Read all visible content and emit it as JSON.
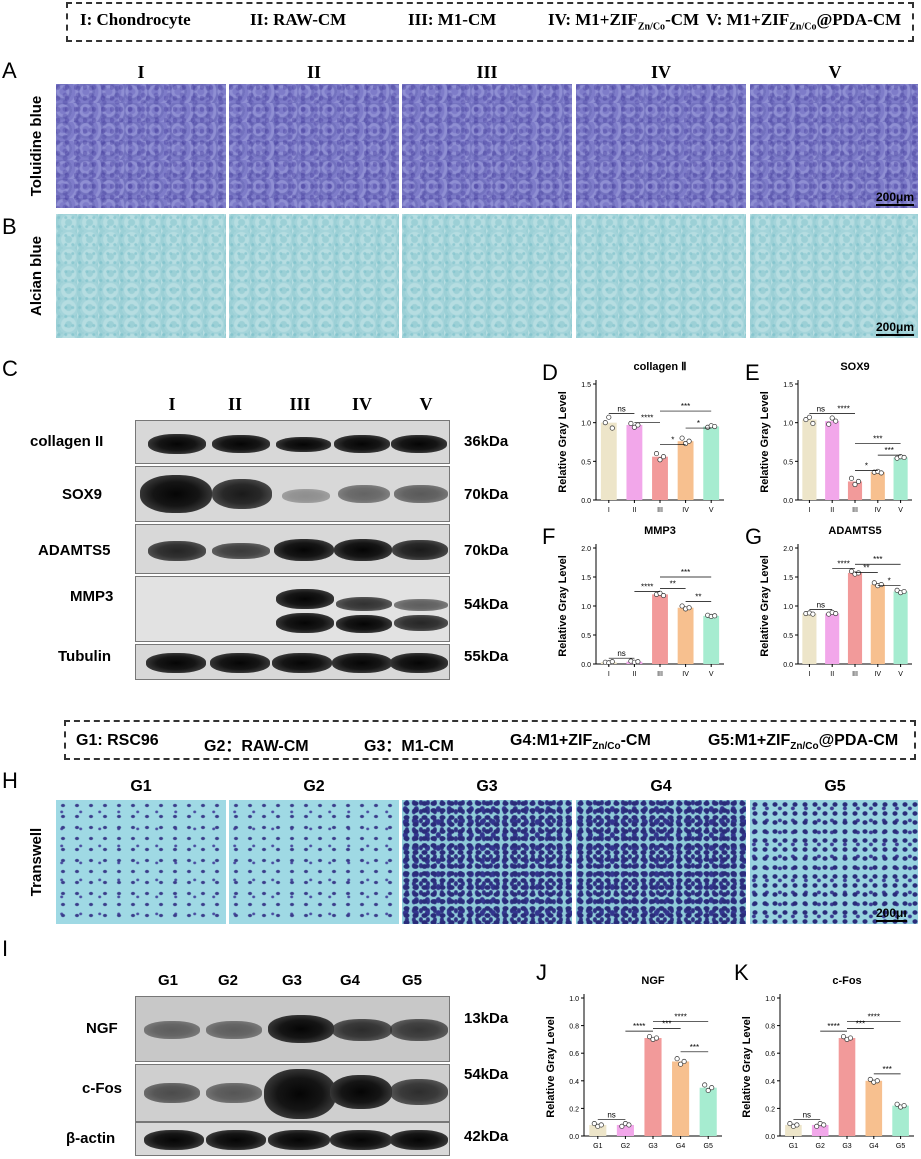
{
  "top_legend": {
    "items": [
      {
        "roman": "I:",
        "text": "Chondrocyte",
        "sub": "",
        "suffix": ""
      },
      {
        "roman": "II:",
        "text": "RAW-CM",
        "sub": "",
        "suffix": ""
      },
      {
        "roman": "III:",
        "text": "M1-CM",
        "sub": "",
        "suffix": ""
      },
      {
        "roman": "IV:",
        "text": "M1+ZIF",
        "sub": "Zn/Co",
        "suffix": "-CM"
      },
      {
        "roman": "V:",
        "text": "M1+ZIF",
        "sub": "Zn/Co",
        "suffix": "@PDA-CM"
      }
    ]
  },
  "panels": {
    "A": "A",
    "B": "B",
    "C": "C",
    "D": "D",
    "E": "E",
    "F": "F",
    "G": "G",
    "H": "H",
    "I": "I",
    "J": "J",
    "K": "K"
  },
  "roman_columns": [
    "I",
    "II",
    "III",
    "IV",
    "V"
  ],
  "row_labels": {
    "toluidine": "Toluidine blue",
    "alcian": "Alcian blue",
    "transwell": "Transwell"
  },
  "scale_bar": "200μm",
  "scale_bar_cut": "200μı",
  "blot_c": {
    "lanes": [
      "I",
      "II",
      "III",
      "IV",
      "V"
    ],
    "rows": [
      {
        "label": "collagen II",
        "kda": "36kDa"
      },
      {
        "label": "SOX9",
        "kda": "70kDa"
      },
      {
        "label": "ADAMTS5",
        "kda": "70kDa"
      },
      {
        "label": "MMP3",
        "kda": "54kDa"
      },
      {
        "label": "Tubulin",
        "kda": "55kDa"
      }
    ]
  },
  "bottom_legend": {
    "items": [
      {
        "g": "G1:",
        "text": "RSC96",
        "sub": "",
        "suffix": ""
      },
      {
        "g": "G2：",
        "text": "RAW-CM",
        "sub": "",
        "suffix": ""
      },
      {
        "g": "G3：",
        "text": "M1-CM",
        "sub": "",
        "suffix": ""
      },
      {
        "g": "G4:",
        "text": "M1+ZIF",
        "sub": "Zn/Co",
        "suffix": "-CM"
      },
      {
        "g": "G5:",
        "text": "M1+ZIF",
        "sub": "Zn/Co",
        "suffix": "@PDA-CM"
      }
    ]
  },
  "g_columns": [
    "G1",
    "G2",
    "G3",
    "G4",
    "G5"
  ],
  "blot_i": {
    "lanes": [
      "G1",
      "G2",
      "G3",
      "G4",
      "G5"
    ],
    "rows": [
      {
        "label": "NGF",
        "kda": "13kDa"
      },
      {
        "label": "c-Fos",
        "kda": "54kDa"
      },
      {
        "label": "β-actin",
        "kda": "42kDa"
      }
    ]
  },
  "colors": {
    "I": "#ede5c9",
    "II": "#f2a7ea",
    "III": "#f29a9a",
    "IV": "#f7c08f",
    "V": "#a6ecd0"
  },
  "chart_data": [
    {
      "id": "D",
      "type": "bar",
      "title": "collagen Ⅱ",
      "ylabel": "Relative Gray Level",
      "categories": [
        "I",
        "II",
        "III",
        "IV",
        "V"
      ],
      "values": [
        1.0,
        0.97,
        0.56,
        0.76,
        0.95
      ],
      "points": [
        [
          1.0,
          1.07,
          0.93
        ],
        [
          0.99,
          0.94,
          0.97
        ],
        [
          0.6,
          0.52,
          0.56
        ],
        [
          0.8,
          0.73,
          0.76
        ],
        [
          0.94,
          0.96,
          0.95
        ]
      ],
      "ylim": [
        0,
        1.5
      ],
      "yticks": [
        "0.0",
        "0.5",
        "1.0",
        "1.5"
      ],
      "sig": [
        {
          "from": 0,
          "to": 1,
          "y": 1.12,
          "label": "ns"
        },
        {
          "from": 1,
          "to": 2,
          "y": 1.0,
          "label": "****"
        },
        {
          "from": 2,
          "to": 4,
          "y": 1.15,
          "label": "***"
        },
        {
          "from": 2,
          "to": 3,
          "y": 0.72,
          "label": "*"
        },
        {
          "from": 3,
          "to": 4,
          "y": 0.93,
          "label": "*"
        }
      ]
    },
    {
      "id": "E",
      "type": "bar",
      "title": "SOX9",
      "ylabel": "Relative Gray Level",
      "categories": [
        "I",
        "II",
        "III",
        "IV",
        "V"
      ],
      "values": [
        1.04,
        1.02,
        0.24,
        0.36,
        0.55
      ],
      "points": [
        [
          1.04,
          1.07,
          0.99
        ],
        [
          0.98,
          1.06,
          1.02
        ],
        [
          0.28,
          0.2,
          0.24
        ],
        [
          0.36,
          0.37,
          0.35
        ],
        [
          0.54,
          0.56,
          0.55
        ]
      ],
      "ylim": [
        0,
        1.5
      ],
      "yticks": [
        "0.0",
        "0.5",
        "1.0",
        "1.5"
      ],
      "sig": [
        {
          "from": 0,
          "to": 1,
          "y": 1.12,
          "label": "ns"
        },
        {
          "from": 1,
          "to": 2,
          "y": 1.12,
          "label": "****"
        },
        {
          "from": 2,
          "to": 4,
          "y": 0.73,
          "label": "***"
        },
        {
          "from": 2,
          "to": 3,
          "y": 0.38,
          "label": "*"
        },
        {
          "from": 3,
          "to": 4,
          "y": 0.58,
          "label": "***"
        }
      ]
    },
    {
      "id": "F",
      "type": "bar",
      "title": "MMP3",
      "ylabel": "Relative Gray Level",
      "categories": [
        "I",
        "II",
        "III",
        "IV",
        "V"
      ],
      "values": [
        0.03,
        0.04,
        1.2,
        0.97,
        0.83
      ],
      "points": [
        [
          0.03,
          0.02,
          0.04
        ],
        [
          0.05,
          0.03,
          0.04
        ],
        [
          1.2,
          1.22,
          1.18
        ],
        [
          1.0,
          0.95,
          0.97
        ],
        [
          0.84,
          0.82,
          0.83
        ]
      ],
      "ylim": [
        0,
        2.0
      ],
      "yticks": [
        "0.0",
        "0.5",
        "1.0",
        "1.5",
        "2.0"
      ],
      "sig": [
        {
          "from": 0,
          "to": 1,
          "y": 0.1,
          "label": "ns"
        },
        {
          "from": 1,
          "to": 2,
          "y": 1.25,
          "label": "****"
        },
        {
          "from": 2,
          "to": 4,
          "y": 1.5,
          "label": "***"
        },
        {
          "from": 2,
          "to": 3,
          "y": 1.3,
          "label": "**"
        },
        {
          "from": 3,
          "to": 4,
          "y": 1.08,
          "label": "**"
        }
      ]
    },
    {
      "id": "G",
      "type": "bar",
      "title": "ADAMTS5",
      "ylabel": "Relative Gray Level",
      "categories": [
        "I",
        "II",
        "III",
        "IV",
        "V"
      ],
      "values": [
        0.87,
        0.87,
        1.57,
        1.37,
        1.25
      ],
      "points": [
        [
          0.87,
          0.88,
          0.86
        ],
        [
          0.86,
          0.89,
          0.87
        ],
        [
          1.6,
          1.55,
          1.57
        ],
        [
          1.4,
          1.35,
          1.37
        ],
        [
          1.27,
          1.23,
          1.25
        ]
      ],
      "ylim": [
        0,
        2.0
      ],
      "yticks": [
        "0.0",
        "0.5",
        "1.0",
        "1.5",
        "2.0"
      ],
      "sig": [
        {
          "from": 0,
          "to": 1,
          "y": 0.94,
          "label": "ns"
        },
        {
          "from": 1,
          "to": 2,
          "y": 1.65,
          "label": "****"
        },
        {
          "from": 2,
          "to": 4,
          "y": 1.72,
          "label": "***"
        },
        {
          "from": 2,
          "to": 3,
          "y": 1.58,
          "label": "**"
        },
        {
          "from": 3,
          "to": 4,
          "y": 1.35,
          "label": "*"
        }
      ]
    },
    {
      "id": "J",
      "type": "bar",
      "title": "NGF",
      "ylabel": "Relative Gray Level",
      "categories": [
        "G1",
        "G2",
        "G3",
        "G4",
        "G5"
      ],
      "values": [
        0.08,
        0.08,
        0.71,
        0.54,
        0.35
      ],
      "points": [
        [
          0.09,
          0.07,
          0.08
        ],
        [
          0.07,
          0.09,
          0.08
        ],
        [
          0.72,
          0.7,
          0.71
        ],
        [
          0.56,
          0.52,
          0.54
        ],
        [
          0.37,
          0.33,
          0.35
        ]
      ],
      "ylim": [
        0,
        1.0
      ],
      "yticks": [
        "0.0",
        "0.2",
        "0.4",
        "0.6",
        "0.8",
        "1.0"
      ],
      "sig": [
        {
          "from": 0,
          "to": 1,
          "y": 0.12,
          "label": "ns"
        },
        {
          "from": 1,
          "to": 2,
          "y": 0.76,
          "label": "****"
        },
        {
          "from": 2,
          "to": 4,
          "y": 0.83,
          "label": "****"
        },
        {
          "from": 2,
          "to": 3,
          "y": 0.78,
          "label": "***"
        },
        {
          "from": 3,
          "to": 4,
          "y": 0.61,
          "label": "***"
        }
      ]
    },
    {
      "id": "K",
      "type": "bar",
      "title": "c-Fos",
      "ylabel": "Relative Gray Level",
      "categories": [
        "G1",
        "G2",
        "G3",
        "G4",
        "G5"
      ],
      "values": [
        0.08,
        0.08,
        0.71,
        0.4,
        0.22
      ],
      "points": [
        [
          0.09,
          0.07,
          0.08
        ],
        [
          0.07,
          0.09,
          0.08
        ],
        [
          0.72,
          0.7,
          0.71
        ],
        [
          0.41,
          0.39,
          0.4
        ],
        [
          0.23,
          0.21,
          0.22
        ]
      ],
      "ylim": [
        0,
        1.0
      ],
      "yticks": [
        "0.0",
        "0.2",
        "0.4",
        "0.6",
        "0.8",
        "1.0"
      ],
      "sig": [
        {
          "from": 0,
          "to": 1,
          "y": 0.12,
          "label": "ns"
        },
        {
          "from": 1,
          "to": 2,
          "y": 0.76,
          "label": "****"
        },
        {
          "from": 2,
          "to": 4,
          "y": 0.83,
          "label": "****"
        },
        {
          "from": 2,
          "to": 3,
          "y": 0.78,
          "label": "***"
        },
        {
          "from": 3,
          "to": 4,
          "y": 0.45,
          "label": "***"
        }
      ]
    }
  ]
}
